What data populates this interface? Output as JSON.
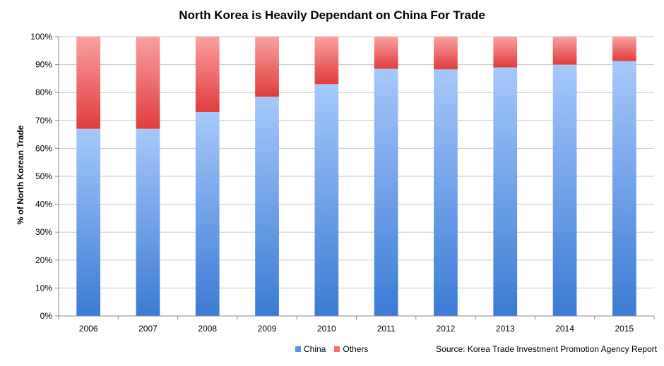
{
  "chart_data": {
    "type": "bar",
    "stacked": true,
    "title": "North Korea is Heavily Dependant on China For Trade",
    "ylabel": "% of North Korean Trade",
    "xlabel": "",
    "categories": [
      "2006",
      "2007",
      "2008",
      "2009",
      "2010",
      "2011",
      "2012",
      "2013",
      "2014",
      "2015"
    ],
    "series": [
      {
        "name": "China",
        "values": [
          67,
          67,
          73,
          78.5,
          83,
          88.5,
          88.3,
          89,
          90,
          91.3
        ],
        "color": "#5b93e0"
      },
      {
        "name": "Others",
        "values": [
          33,
          33,
          27,
          21.5,
          17,
          11.5,
          11.7,
          11,
          10,
          8.7
        ],
        "color": "#f07070"
      }
    ],
    "ylim": [
      0,
      100
    ],
    "yticks": [
      "0%",
      "10%",
      "20%",
      "30%",
      "40%",
      "50%",
      "60%",
      "70%",
      "80%",
      "90%",
      "100%"
    ],
    "grid": true,
    "legend_position": "bottom",
    "source": "Source: Korea Trade Investment Promotion Agency Report"
  }
}
